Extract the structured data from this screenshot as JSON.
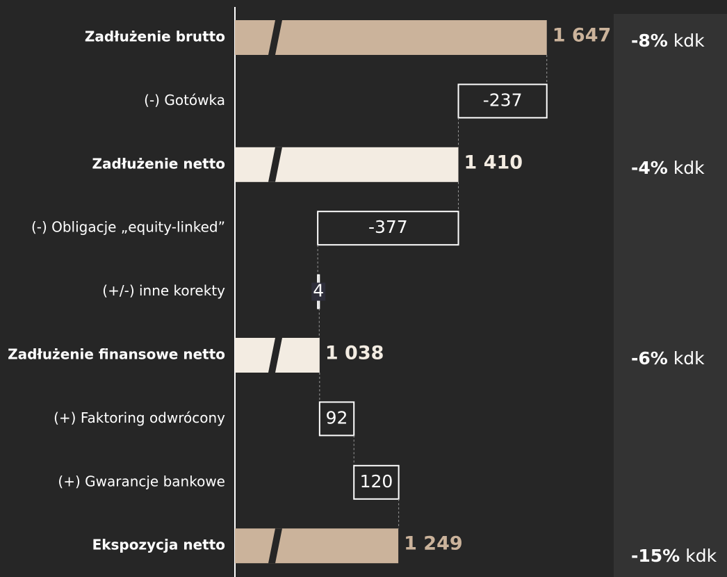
{
  "chart_data": {
    "type": "waterfall",
    "categories": [
      "Zadłużenie brutto",
      "(-) Gotówka",
      "Zadłużenie netto",
      "(-) Obligacje „equity-linked”",
      "(+/-) inne korekty",
      "Zadłużenie finansowe netto",
      "(+) Faktoring odwrócony",
      "(+) Gwarancje bankowe",
      "Ekspozycja netto"
    ],
    "kinds": [
      "total",
      "delta",
      "total",
      "delta",
      "delta",
      "total",
      "delta",
      "delta",
      "total"
    ],
    "values": [
      1647,
      -237,
      1410,
      -377,
      4,
      1038,
      92,
      120,
      1249
    ],
    "value_labels": [
      "1 647",
      "-237",
      "1 410",
      "-377",
      "4",
      "1 038",
      "92",
      "120",
      "1 249"
    ],
    "colors": [
      "#cbb39b",
      "#ffffff",
      "#f3ece2",
      "#ffffff",
      "#ffffff",
      "#f3ece2",
      "#ffffff",
      "#ffffff",
      "#cbb39b"
    ],
    "change_labels": [
      "-8%",
      null,
      "-4%",
      null,
      null,
      "-6%",
      null,
      null,
      "-15%"
    ],
    "change_unit": "kdk",
    "xlim": [
      811,
      1804
    ],
    "axis_break": true
  }
}
